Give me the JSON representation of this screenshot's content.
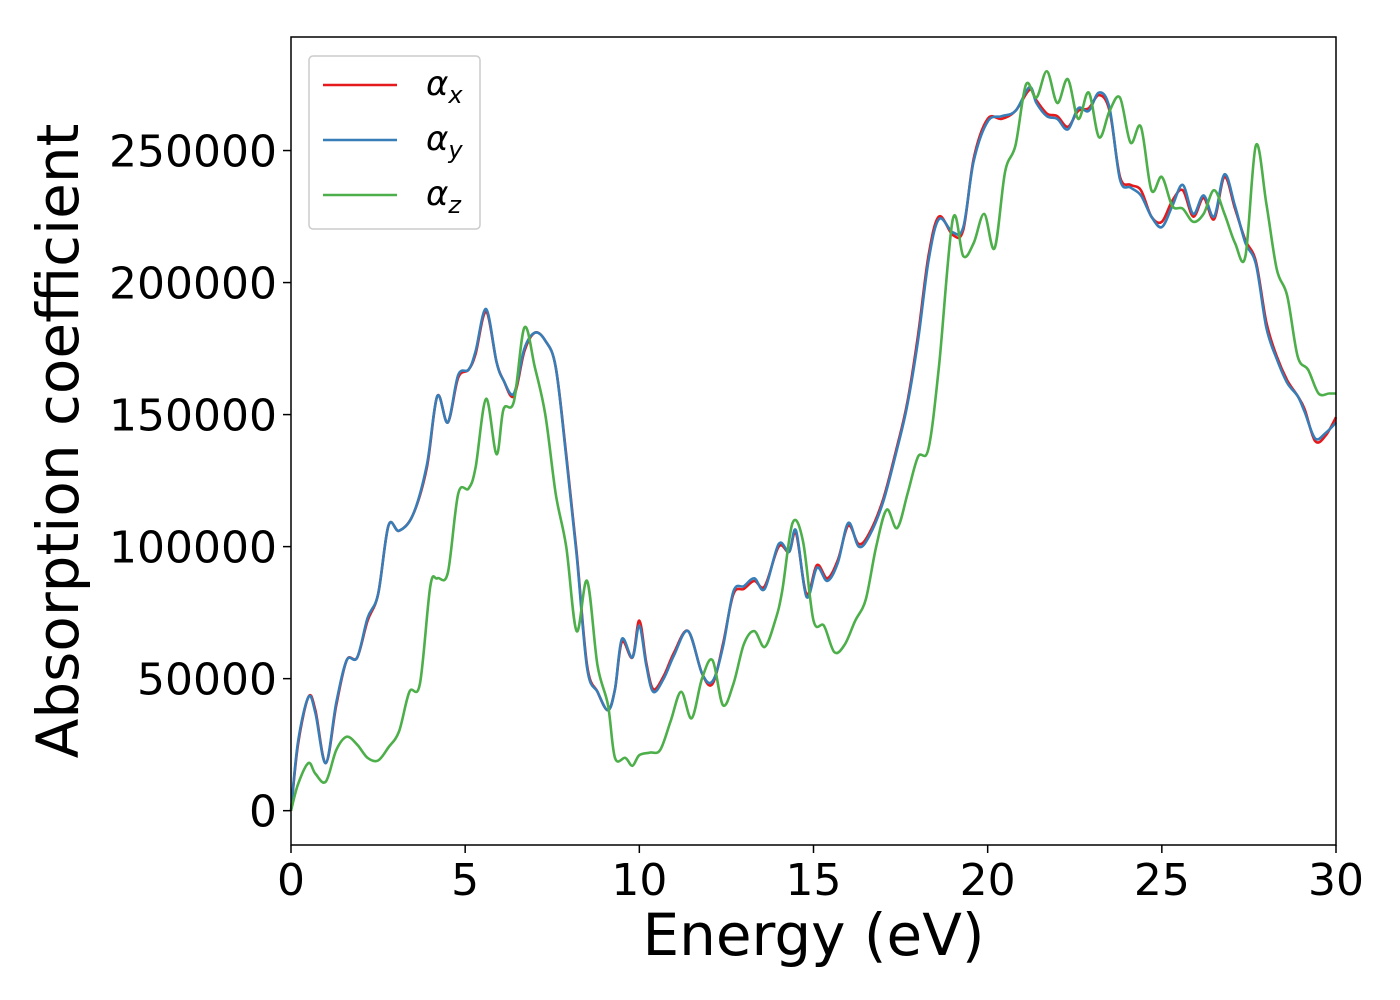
{
  "chart_data": {
    "type": "line",
    "title": "",
    "xlabel": "Energy (eV)",
    "ylabel": "Absorption coefficient",
    "xlim": [
      0,
      30
    ],
    "ylim": [
      -13000,
      293000
    ],
    "xticks": [
      0,
      5,
      10,
      15,
      20,
      25,
      30
    ],
    "yticks": [
      0,
      50000,
      100000,
      150000,
      200000,
      250000
    ],
    "grid": false,
    "legend_position": "upper-left",
    "series": [
      {
        "name": "α",
        "subscript": "x",
        "color": "#e41a1c",
        "x": [
          0,
          0.2,
          0.5,
          0.7,
          1.0,
          1.3,
          1.6,
          1.9,
          2.2,
          2.5,
          2.8,
          3.1,
          3.5,
          3.9,
          4.2,
          4.5,
          4.8,
          5.1,
          5.3,
          5.6,
          5.9,
          6.1,
          6.4,
          6.7,
          7.0,
          7.3,
          7.6,
          7.9,
          8.2,
          8.5,
          8.8,
          9.1,
          9.3,
          9.5,
          9.8,
          10.0,
          10.2,
          10.4,
          10.7,
          11.0,
          11.4,
          11.8,
          12.1,
          12.4,
          12.7,
          13.0,
          13.3,
          13.6,
          14.0,
          14.3,
          14.5,
          14.8,
          15.1,
          15.4,
          15.7,
          16.0,
          16.3,
          16.6,
          17.0,
          17.4,
          17.7,
          18.0,
          18.3,
          18.6,
          19.0,
          19.3,
          19.6,
          20.0,
          20.4,
          20.8,
          21.2,
          21.4,
          21.7,
          22.0,
          22.3,
          22.6,
          22.9,
          23.2,
          23.5,
          23.8,
          24.1,
          24.4,
          24.7,
          25.0,
          25.3,
          25.6,
          25.9,
          26.2,
          26.5,
          26.8,
          27.1,
          27.4,
          27.7,
          28.0,
          28.3,
          28.6,
          28.9,
          29.1,
          29.4,
          29.7,
          30.0
        ],
        "y": [
          0,
          25000,
          43000,
          38000,
          18000,
          40000,
          57000,
          58000,
          72000,
          82000,
          108000,
          106000,
          112000,
          130000,
          157000,
          147000,
          164000,
          167000,
          173000,
          189000,
          170000,
          163000,
          157000,
          174000,
          181000,
          178000,
          168000,
          135000,
          98000,
          55000,
          45000,
          38000,
          46000,
          64000,
          58000,
          72000,
          56000,
          46000,
          51000,
          60000,
          68000,
          52000,
          48000,
          63000,
          82000,
          84000,
          87000,
          85000,
          100000,
          98000,
          105000,
          82000,
          93000,
          88000,
          95000,
          108000,
          101000,
          105000,
          118000,
          138000,
          155000,
          180000,
          210000,
          225000,
          218000,
          220000,
          247000,
          262000,
          262000,
          265000,
          273000,
          269000,
          264000,
          263000,
          259000,
          265000,
          266000,
          271000,
          265000,
          240000,
          237000,
          235000,
          225000,
          223000,
          231000,
          235000,
          225000,
          232000,
          224000,
          240000,
          228000,
          216000,
          208000,
          185000,
          172000,
          163000,
          157000,
          152000,
          140000,
          142000,
          149000
        ]
      },
      {
        "name": "α",
        "subscript": "y",
        "color": "#377eb8",
        "x": [
          0,
          0.2,
          0.5,
          0.7,
          1.0,
          1.3,
          1.6,
          1.9,
          2.2,
          2.5,
          2.8,
          3.1,
          3.5,
          3.9,
          4.2,
          4.5,
          4.8,
          5.1,
          5.3,
          5.6,
          5.9,
          6.1,
          6.4,
          6.7,
          7.0,
          7.3,
          7.6,
          7.9,
          8.2,
          8.5,
          8.8,
          9.1,
          9.3,
          9.5,
          9.8,
          10.0,
          10.2,
          10.4,
          10.7,
          11.0,
          11.4,
          11.8,
          12.1,
          12.4,
          12.7,
          13.0,
          13.3,
          13.6,
          14.0,
          14.3,
          14.5,
          14.8,
          15.1,
          15.4,
          15.7,
          16.0,
          16.3,
          16.6,
          17.0,
          17.4,
          17.7,
          18.0,
          18.3,
          18.6,
          19.0,
          19.3,
          19.6,
          20.0,
          20.4,
          20.8,
          21.2,
          21.4,
          21.7,
          22.0,
          22.3,
          22.6,
          22.9,
          23.2,
          23.5,
          23.8,
          24.1,
          24.4,
          24.7,
          25.0,
          25.3,
          25.6,
          25.9,
          26.2,
          26.5,
          26.8,
          27.1,
          27.4,
          27.7,
          28.0,
          28.3,
          28.6,
          28.9,
          29.1,
          29.4,
          29.7,
          30.0
        ],
        "y": [
          0,
          26000,
          43000,
          37000,
          18000,
          41000,
          57000,
          58000,
          73000,
          82000,
          108000,
          106000,
          112000,
          131000,
          157000,
          147000,
          165000,
          167000,
          174000,
          190000,
          170000,
          163000,
          158000,
          175000,
          181000,
          178000,
          168000,
          134000,
          97000,
          54000,
          45000,
          38000,
          46000,
          65000,
          58000,
          70000,
          55000,
          45000,
          50000,
          59000,
          68000,
          52000,
          49000,
          62000,
          83000,
          85000,
          88000,
          84000,
          101000,
          98000,
          106000,
          81000,
          92000,
          87000,
          94000,
          109000,
          100000,
          104000,
          117000,
          137000,
          154000,
          178000,
          208000,
          224000,
          219000,
          221000,
          246000,
          261000,
          263000,
          265000,
          274000,
          268000,
          263000,
          262000,
          258000,
          266000,
          265000,
          272000,
          266000,
          239000,
          236000,
          233000,
          225000,
          221000,
          229000,
          237000,
          226000,
          233000,
          225000,
          241000,
          229000,
          215000,
          207000,
          183000,
          171000,
          162000,
          157000,
          151000,
          141000,
          143000,
          147000
        ]
      },
      {
        "name": "α",
        "subscript": "z",
        "color": "#4daf4a",
        "x": [
          0,
          0.2,
          0.5,
          0.7,
          1.0,
          1.3,
          1.6,
          1.9,
          2.2,
          2.5,
          2.8,
          3.1,
          3.4,
          3.7,
          4.0,
          4.2,
          4.5,
          4.8,
          5.1,
          5.3,
          5.6,
          5.9,
          6.1,
          6.4,
          6.7,
          7.0,
          7.3,
          7.6,
          7.9,
          8.2,
          8.5,
          8.8,
          9.1,
          9.3,
          9.6,
          9.8,
          10.0,
          10.3,
          10.6,
          10.9,
          11.2,
          11.5,
          11.8,
          12.1,
          12.4,
          12.7,
          13.0,
          13.3,
          13.6,
          13.9,
          14.1,
          14.4,
          14.7,
          15.0,
          15.3,
          15.6,
          15.9,
          16.2,
          16.5,
          16.8,
          17.1,
          17.4,
          17.7,
          18.0,
          18.3,
          18.6,
          19.0,
          19.3,
          19.6,
          19.9,
          20.2,
          20.5,
          20.8,
          21.1,
          21.4,
          21.7,
          22.0,
          22.3,
          22.6,
          22.9,
          23.2,
          23.5,
          23.8,
          24.1,
          24.4,
          24.7,
          25.0,
          25.3,
          25.6,
          25.9,
          26.2,
          26.5,
          26.8,
          27.1,
          27.4,
          27.7,
          28.0,
          28.3,
          28.6,
          28.9,
          29.2,
          29.5,
          29.8,
          30.0
        ],
        "y": [
          0,
          10000,
          18000,
          14000,
          11000,
          23000,
          28000,
          25000,
          20000,
          19000,
          24000,
          30000,
          45000,
          48000,
          85000,
          88000,
          90000,
          120000,
          122000,
          130000,
          156000,
          135000,
          152000,
          155000,
          183000,
          168000,
          150000,
          120000,
          100000,
          68000,
          87000,
          55000,
          40000,
          20000,
          20000,
          17000,
          21000,
          22000,
          23000,
          34000,
          45000,
          35000,
          50000,
          57000,
          40000,
          48000,
          63000,
          68000,
          62000,
          72000,
          83000,
          109000,
          102000,
          72000,
          70000,
          60000,
          63000,
          72000,
          80000,
          100000,
          114000,
          107000,
          120000,
          134000,
          137000,
          168000,
          224000,
          210000,
          215000,
          226000,
          213000,
          242000,
          252000,
          275000,
          270000,
          280000,
          268000,
          277000,
          262000,
          272000,
          255000,
          265000,
          270000,
          253000,
          259000,
          235000,
          240000,
          229000,
          228000,
          223000,
          226000,
          235000,
          226000,
          215000,
          210000,
          252000,
          230000,
          205000,
          195000,
          172000,
          167000,
          158000,
          158000,
          158000
        ]
      }
    ]
  }
}
